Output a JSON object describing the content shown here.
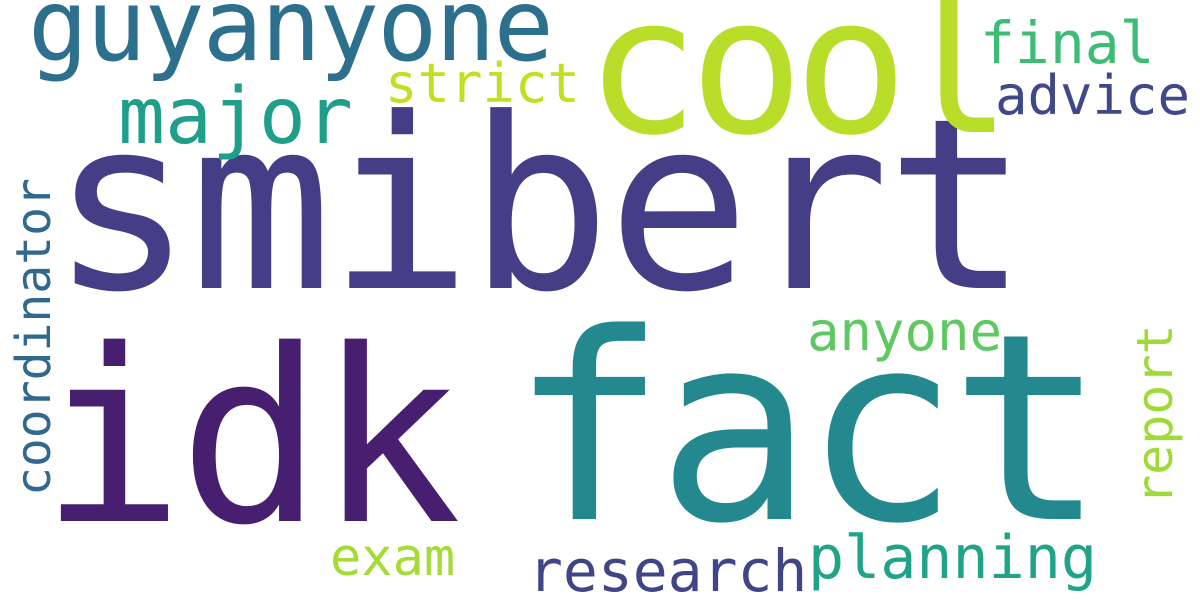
{
  "word_cloud": {
    "background": "#ffffff",
    "words": [
      {
        "text": "smibert",
        "color": "#433e85"
      },
      {
        "text": "idk",
        "color": "#481f70"
      },
      {
        "text": "fact",
        "color": "#23898e"
      },
      {
        "text": "cool",
        "color": "#b8de29"
      },
      {
        "text": "guyanyone",
        "color": "#2d708e"
      },
      {
        "text": "major",
        "color": "#1f9e89"
      },
      {
        "text": "strict",
        "color": "#c2df23"
      },
      {
        "text": "final",
        "color": "#3cbc75"
      },
      {
        "text": "advice",
        "color": "#3f4889"
      },
      {
        "text": "coordinator",
        "color": "#31688e"
      },
      {
        "text": "anyone",
        "color": "#5ec962"
      },
      {
        "text": "report",
        "color": "#a0da39"
      },
      {
        "text": "exam",
        "color": "#a5db36"
      },
      {
        "text": "research",
        "color": "#404588"
      },
      {
        "text": "planning",
        "color": "#20a386"
      }
    ]
  }
}
